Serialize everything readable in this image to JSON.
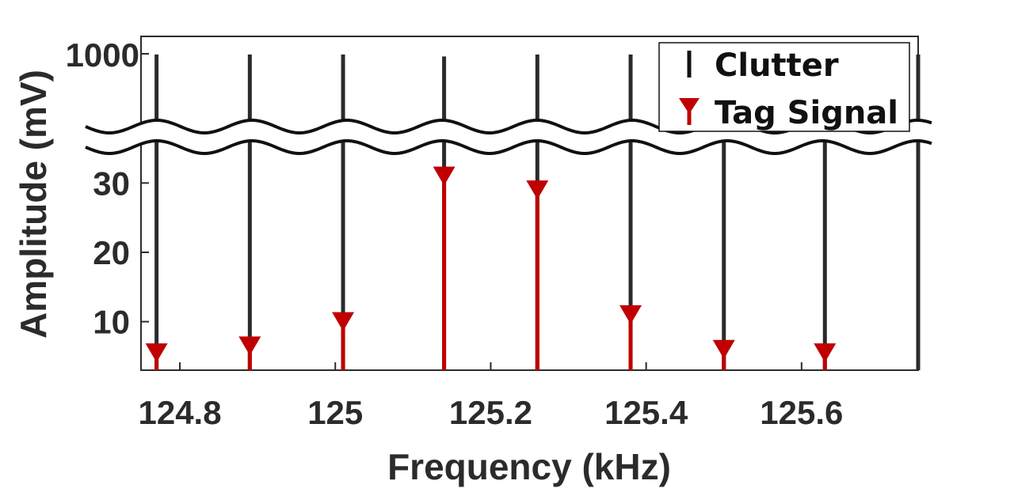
{
  "chart_data": {
    "type": "stem",
    "xlabel": "Frequency (kHz)",
    "ylabel": "Amplitude (mV)",
    "xlim": [
      124.75,
      125.75
    ],
    "ylim_lower": [
      3,
      37
    ],
    "ylim_upper_tick": 1000,
    "y_axis_break": true,
    "x_ticks": [
      "124.8",
      "125",
      "125.2",
      "125.4",
      "125.6"
    ],
    "x_tick_values": [
      124.8,
      125,
      125.2,
      125.4,
      125.6
    ],
    "y_ticks": [
      "10",
      "20",
      "30"
    ],
    "y_tick_values": [
      10,
      20,
      30
    ],
    "y_top_tick_label": "1000",
    "legend": {
      "position": "top-right",
      "entries": [
        "Clutter",
        "Tag Signal"
      ]
    },
    "colors": {
      "clutter": "#2b2b2b",
      "tag": "#c00000"
    },
    "series": [
      {
        "name": "Clutter",
        "x": [
          124.77,
          124.89,
          125.01,
          125.14,
          125.26,
          125.38,
          125.5,
          125.63,
          125.75
        ],
        "y": [
          990,
          990,
          990,
          960,
          990,
          990,
          990,
          990,
          990
        ]
      },
      {
        "name": "Tag Signal",
        "x": [
          124.77,
          124.89,
          125.01,
          125.14,
          125.26,
          125.38,
          125.5,
          125.63
        ],
        "y": [
          5.5,
          6.5,
          10,
          31,
          29,
          11,
          6,
          5.5
        ]
      }
    ]
  }
}
